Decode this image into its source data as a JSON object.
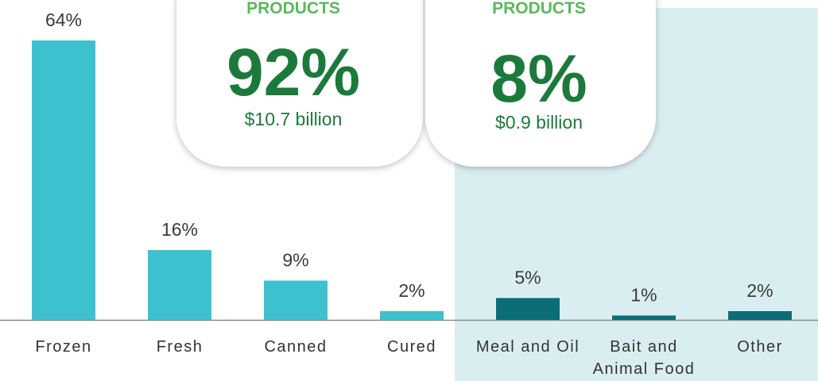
{
  "chart_data": {
    "type": "bar",
    "categories": [
      "Frozen",
      "Fresh",
      "Canned",
      "Cured",
      "Meal and Oil",
      "Bait and Animal Food",
      "Other"
    ],
    "values": [
      64,
      16,
      9,
      2,
      5,
      1,
      2
    ],
    "value_labels": [
      "64%",
      "16%",
      "9%",
      "2%",
      "5%",
      "1%",
      "2%"
    ],
    "colors": [
      "#3ec1cf",
      "#3ec1cf",
      "#3ec1cf",
      "#3ec1cf",
      "#0b6d77",
      "#0b6d77",
      "#0b6d77"
    ],
    "annotations": [
      {
        "heading": "PRODUCTS",
        "share": "92%",
        "amount": "$10.7 billion"
      },
      {
        "heading": "PRODUCTS",
        "share": "8%",
        "amount": "$0.9 billion"
      }
    ]
  }
}
